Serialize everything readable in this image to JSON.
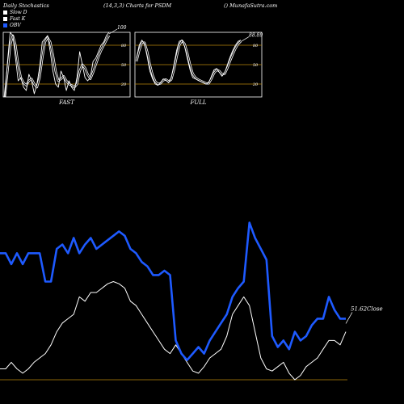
{
  "header": {
    "left": "Daily Stochastics",
    "middle": "(14,3,3) Charts for PSDM",
    "right": "() MunafaSutra.com"
  },
  "legend": [
    {
      "label": "Slow D",
      "color": "#ffffff"
    },
    {
      "label": "Fast K",
      "color": "#ffffff"
    },
    {
      "label": "OBV",
      "color": "#1e5aff"
    }
  ],
  "colors": {
    "background": "#000000",
    "guide": "#b8860b",
    "obv": "#1e5aff",
    "price": "#ffffff",
    "stoch": "#ffffff"
  },
  "chart_data": [
    {
      "type": "line",
      "panel_label": "FAST",
      "ylim": [
        0,
        100
      ],
      "yticks": [
        80,
        50,
        20
      ],
      "guide_levels": [
        80,
        50,
        20
      ],
      "end_label": "100",
      "series": [
        {
          "name": "Fast K",
          "values": [
            0,
            55,
            100,
            95,
            60,
            25,
            30,
            15,
            10,
            35,
            25,
            5,
            20,
            45,
            85,
            90,
            95,
            70,
            40,
            20,
            15,
            40,
            30,
            10,
            25,
            15,
            10,
            30,
            70,
            50,
            30,
            25,
            30,
            55,
            60,
            70,
            80,
            85,
            95,
            100
          ]
        },
        {
          "name": "Slow D",
          "values": [
            0,
            40,
            80,
            95,
            80,
            50,
            30,
            22,
            18,
            25,
            28,
            20,
            15,
            30,
            60,
            85,
            92,
            85,
            65,
            40,
            25,
            28,
            32,
            25,
            20,
            18,
            15,
            20,
            40,
            50,
            45,
            35,
            28,
            38,
            50,
            62,
            72,
            80,
            88,
            95
          ]
        }
      ]
    },
    {
      "type": "line",
      "panel_label": "FULL",
      "ylim": [
        0,
        100
      ],
      "yticks": [
        80,
        50,
        20
      ],
      "guide_levels": [
        80,
        50,
        20
      ],
      "end_label": "88.89",
      "series": [
        {
          "name": "Fast K",
          "values": [
            60,
            80,
            88,
            82,
            62,
            40,
            28,
            20,
            18,
            22,
            28,
            26,
            22,
            30,
            50,
            72,
            86,
            88,
            78,
            60,
            42,
            30,
            28,
            26,
            24,
            22,
            20,
            22,
            32,
            42,
            44,
            38,
            32,
            38,
            50,
            62,
            72,
            80,
            86,
            88
          ]
        },
        {
          "name": "Slow D",
          "values": [
            55,
            72,
            84,
            84,
            70,
            50,
            34,
            24,
            20,
            21,
            26,
            27,
            24,
            27,
            42,
            62,
            80,
            87,
            82,
            68,
            50,
            36,
            30,
            27,
            25,
            23,
            21,
            21,
            28,
            37,
            42,
            40,
            35,
            36,
            45,
            56,
            66,
            75,
            82,
            86
          ]
        }
      ]
    },
    {
      "type": "line",
      "panel_label": "",
      "end_label": "51.62Close",
      "series": [
        {
          "name": "OBV",
          "values": [
            58,
            58,
            53,
            58,
            53,
            58,
            58,
            58,
            45,
            45,
            60,
            62,
            58,
            65,
            58,
            62,
            65,
            60,
            62,
            64,
            66,
            68,
            66,
            60,
            58,
            54,
            52,
            48,
            48,
            50,
            48,
            18,
            12,
            9,
            12,
            15,
            12,
            18,
            22,
            26,
            30,
            38,
            42,
            45,
            72,
            65,
            60,
            55,
            20,
            15,
            18,
            14,
            22,
            18,
            20,
            25,
            28,
            28,
            38,
            32,
            28,
            28
          ]
        },
        {
          "name": "Price",
          "values": [
            5,
            5,
            8,
            5,
            3,
            5,
            8,
            10,
            12,
            16,
            22,
            26,
            28,
            30,
            38,
            36,
            40,
            40,
            42,
            44,
            45,
            44,
            42,
            36,
            34,
            30,
            26,
            22,
            18,
            14,
            12,
            16,
            12,
            8,
            4,
            3,
            6,
            10,
            12,
            14,
            20,
            30,
            34,
            38,
            34,
            22,
            10,
            5,
            4,
            6,
            8,
            3,
            0,
            2,
            6,
            8,
            10,
            14,
            18,
            18,
            16,
            22
          ]
        }
      ]
    }
  ]
}
